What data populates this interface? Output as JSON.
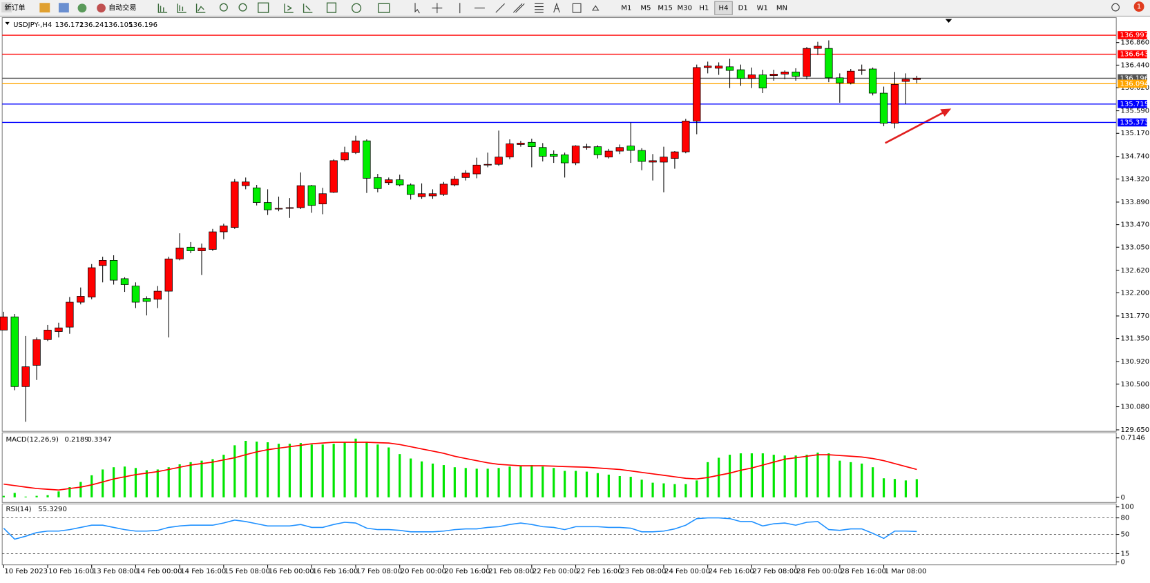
{
  "toolbar": {
    "new_order": "新订单",
    "auto_trading": "自动交易",
    "timeframes": [
      "M1",
      "M5",
      "M15",
      "M30",
      "H1",
      "H4",
      "D1",
      "W1",
      "MN"
    ],
    "notifications": 1
  },
  "chart_data": [
    {
      "type": "candlestick",
      "title": "USDJPY-,H4",
      "categories": [
        "10 Feb 2023",
        null,
        null,
        null,
        "10 Feb 16:00",
        null,
        null,
        null,
        "13 Feb 08:00",
        null,
        null,
        null,
        "14 Feb 00:00",
        null,
        null,
        null,
        "14 Feb 16:00",
        null,
        null,
        null,
        "15 Feb 08:00",
        null,
        null,
        null,
        "16 Feb 00:00",
        null,
        null,
        null,
        "16 Feb 16:00",
        null,
        null,
        null,
        "17 Feb 08:00",
        null,
        null,
        null,
        "20 Feb 00:00",
        null,
        null,
        null,
        "20 Feb 16:00",
        null,
        null,
        null,
        "21 Feb 08:00",
        null,
        null,
        null,
        "22 Feb 00:00",
        null,
        null,
        null,
        "22 Feb 16:00",
        null,
        null,
        null,
        "23 Feb 08:00",
        null,
        null,
        null,
        "24 Feb 00:00",
        null,
        null,
        null,
        "24 Feb 16:00",
        null,
        null,
        null,
        "27 Feb 08:00",
        null,
        null,
        null,
        "28 Feb 00:00",
        null,
        null,
        null,
        "28 Feb 16:00",
        null,
        null,
        null,
        "1 Mar 08:00",
        null,
        null,
        null
      ],
      "open": [
        131.507,
        131.753,
        130.455,
        130.851,
        131.329,
        131.48,
        131.562,
        132.026,
        132.122,
        132.709,
        132.805,
        132.464,
        132.327,
        132.095,
        132.081,
        132.231,
        132.832,
        133.05,
        132.982,
        133.009,
        133.336,
        133.418,
        134.196,
        134.155,
        133.882,
        133.76,
        133.773,
        133.787,
        134.196,
        133.855,
        134.073,
        134.675,
        134.811,
        135.03,
        134.347,
        134.251,
        134.306,
        134.21,
        133.992,
        134.005,
        134.033,
        134.21,
        134.347,
        134.415,
        134.579,
        134.593,
        134.729,
        134.962,
        135.003,
        134.907,
        134.784,
        134.77,
        134.62,
        134.907,
        134.921,
        134.729,
        134.839,
        134.934,
        134.852,
        134.634,
        134.634,
        134.702,
        134.825,
        135.399,
        136.395,
        136.382,
        136.409,
        136.354,
        136.191,
        136.259,
        136.245,
        136.273,
        136.313,
        136.232,
        136.751,
        136.751,
        136.204,
        136.109,
        136.341,
        136.368,
        135.918,
        135.358,
        136.136,
        136.172
      ],
      "high": [
        131.848,
        131.808,
        131.398,
        131.37,
        131.603,
        131.644,
        132.122,
        132.3,
        132.736,
        132.873,
        132.9,
        132.491,
        132.395,
        132.136,
        132.327,
        132.873,
        133.309,
        133.145,
        133.118,
        133.391,
        133.487,
        134.319,
        134.347,
        134.21,
        134.128,
        133.992,
        133.964,
        134.442,
        134.21,
        134.155,
        134.688,
        134.921,
        135.126,
        135.058,
        134.415,
        134.347,
        134.401,
        134.238,
        134.238,
        134.128,
        134.265,
        134.374,
        134.483,
        134.716,
        134.811,
        135.221,
        135.058,
        135.03,
        135.071,
        134.989,
        134.852,
        134.811,
        134.948,
        134.975,
        134.948,
        134.88,
        134.962,
        135.371,
        134.893,
        134.784,
        134.921,
        134.839,
        135.44,
        136.45,
        136.505,
        136.491,
        136.56,
        136.45,
        136.395,
        136.354,
        136.354,
        136.341,
        136.382,
        136.778,
        136.874,
        136.901,
        136.286,
        136.368,
        136.45,
        136.395,
        136.04,
        136.313,
        136.286,
        136.241
      ],
      "low": [
        131.507,
        130.387,
        129.8,
        130.578,
        131.302,
        131.37,
        131.439,
        131.985,
        132.081,
        132.395,
        132.354,
        132.218,
        131.917,
        131.78,
        131.917,
        131.37,
        132.805,
        132.941,
        132.532,
        132.982,
        133.2,
        133.391,
        134.128,
        133.828,
        133.65,
        133.719,
        133.596,
        133.76,
        133.691,
        133.664,
        134.06,
        134.647,
        134.784,
        134.06,
        134.073,
        134.21,
        134.183,
        133.937,
        133.951,
        133.951,
        134.005,
        134.183,
        134.292,
        134.333,
        134.538,
        134.565,
        134.688,
        134.921,
        134.538,
        134.647,
        134.62,
        134.347,
        134.579,
        134.866,
        134.702,
        134.702,
        134.784,
        134.62,
        134.483,
        134.292,
        134.073,
        134.511,
        134.798,
        135.153,
        136.286,
        136.259,
        136.013,
        136.054,
        136.013,
        135.918,
        136.15,
        136.177,
        136.15,
        136.177,
        136.628,
        136.122,
        135.74,
        136.081,
        136.259,
        135.876,
        135.303,
        135.262,
        135.713,
        136.105
      ],
      "close": [
        131.753,
        130.455,
        130.824,
        131.329,
        131.507,
        131.548,
        132.026,
        132.136,
        132.668,
        132.805,
        132.436,
        132.354,
        132.026,
        132.04,
        132.231,
        132.832,
        133.036,
        132.982,
        133.036,
        133.336,
        133.446,
        134.265,
        134.265,
        133.882,
        133.746,
        133.773,
        133.787,
        134.196,
        133.828,
        134.046,
        134.661,
        134.811,
        135.03,
        134.333,
        134.142,
        134.306,
        134.21,
        134.033,
        134.046,
        134.046,
        134.224,
        134.319,
        134.429,
        134.579,
        134.593,
        134.729,
        134.975,
        134.989,
        134.921,
        134.743,
        134.743,
        134.62,
        134.934,
        134.921,
        134.77,
        134.839,
        134.907,
        134.852,
        134.647,
        134.661,
        134.729,
        134.825,
        135.399,
        136.395,
        136.423,
        136.423,
        136.341,
        136.191,
        136.259,
        136.013,
        136.273,
        136.313,
        136.232,
        136.751,
        136.792,
        136.204,
        136.109,
        136.327,
        136.354,
        135.918,
        135.358,
        136.081,
        136.177,
        136.196
      ],
      "up_color": "#ff0000",
      "down_color": "#00ee00",
      "ylim": [
        129.622,
        137.311
      ],
      "yticks": [
        {
          "value": 136.86,
          "label": "136.860"
        },
        {
          "value": 136.44,
          "label": "136.440"
        },
        {
          "value": 136.02,
          "label": "136.020"
        },
        {
          "value": 135.59,
          "label": "135.590"
        },
        {
          "value": 135.17,
          "label": "135.170"
        },
        {
          "value": 134.74,
          "label": "134.740"
        },
        {
          "value": 134.32,
          "label": "134.320"
        },
        {
          "value": 133.89,
          "label": "133.890"
        },
        {
          "value": 133.47,
          "label": "133.470"
        },
        {
          "value": 133.05,
          "label": "133.050"
        },
        {
          "value": 132.62,
          "label": "132.620"
        },
        {
          "value": 132.2,
          "label": "132.200"
        },
        {
          "value": 131.77,
          "label": "131.770"
        },
        {
          "value": 131.35,
          "label": "131.350"
        },
        {
          "value": 130.92,
          "label": "130.920"
        },
        {
          "value": 130.5,
          "label": "130.500"
        },
        {
          "value": 130.08,
          "label": "130.080"
        },
        {
          "value": 129.65,
          "label": "129.650"
        }
      ],
      "hlines": [
        {
          "value": 136.997,
          "color": "#ff0000"
        },
        {
          "value": 136.643,
          "color": "#ff0000"
        },
        {
          "value": 136.196,
          "color": "#555555"
        },
        {
          "value": 136.094,
          "color": "#ffa500"
        },
        {
          "value": 135.715,
          "color": "#0000ff"
        },
        {
          "value": 135.373,
          "color": "#0000ff"
        }
      ]
    },
    {
      "type": "macd",
      "title": "MACD(12,26,9)",
      "histogram": [
        0.018,
        0.053,
        0.009,
        0.018,
        0.026,
        0.071,
        0.123,
        0.185,
        0.265,
        0.335,
        0.362,
        0.37,
        0.353,
        0.326,
        0.335,
        0.362,
        0.397,
        0.423,
        0.441,
        0.459,
        0.512,
        0.626,
        0.679,
        0.67,
        0.662,
        0.644,
        0.644,
        0.653,
        0.635,
        0.635,
        0.644,
        0.662,
        0.706,
        0.67,
        0.635,
        0.6,
        0.52,
        0.467,
        0.432,
        0.406,
        0.388,
        0.362,
        0.353,
        0.344,
        0.344,
        0.353,
        0.37,
        0.379,
        0.388,
        0.37,
        0.353,
        0.318,
        0.318,
        0.309,
        0.291,
        0.273,
        0.256,
        0.247,
        0.212,
        0.176,
        0.168,
        0.159,
        0.159,
        0.203,
        0.423,
        0.476,
        0.512,
        0.529,
        0.529,
        0.529,
        0.512,
        0.503,
        0.503,
        0.512,
        0.538,
        0.529,
        0.441,
        0.423,
        0.406,
        0.362,
        0.229,
        0.221,
        0.203,
        0.2189
      ],
      "signal": [
        0.159,
        0.141,
        0.123,
        0.106,
        0.097,
        0.088,
        0.106,
        0.123,
        0.15,
        0.185,
        0.221,
        0.247,
        0.273,
        0.291,
        0.309,
        0.335,
        0.362,
        0.388,
        0.406,
        0.423,
        0.45,
        0.476,
        0.512,
        0.547,
        0.573,
        0.591,
        0.609,
        0.626,
        0.644,
        0.653,
        0.662,
        0.662,
        0.662,
        0.662,
        0.657,
        0.653,
        0.635,
        0.609,
        0.582,
        0.556,
        0.529,
        0.494,
        0.467,
        0.441,
        0.415,
        0.397,
        0.388,
        0.379,
        0.379,
        0.379,
        0.375,
        0.37,
        0.366,
        0.362,
        0.353,
        0.344,
        0.335,
        0.318,
        0.3,
        0.282,
        0.265,
        0.247,
        0.229,
        0.221,
        0.238,
        0.265,
        0.291,
        0.326,
        0.353,
        0.388,
        0.423,
        0.459,
        0.476,
        0.494,
        0.512,
        0.512,
        0.503,
        0.494,
        0.485,
        0.467,
        0.441,
        0.406,
        0.37,
        0.3347
      ],
      "histogram_color": "#00e600",
      "signal_color": "#ff0000",
      "ylim": [
        -0.062,
        0.776
      ],
      "yticks": [
        0.7146,
        0
      ]
    },
    {
      "type": "rsi",
      "title": "RSI(14)",
      "values": [
        61.3,
        41.3,
        46.7,
        53.3,
        56.0,
        56.0,
        58.7,
        62.7,
        66.7,
        66.7,
        62.7,
        58.7,
        56.0,
        56.0,
        57.3,
        62.7,
        65.3,
        66.7,
        66.7,
        66.7,
        70.7,
        76.0,
        73.3,
        69.3,
        65.3,
        65.3,
        65.3,
        68.0,
        62.7,
        62.7,
        68.0,
        72.0,
        70.7,
        61.3,
        58.7,
        58.7,
        57.3,
        54.7,
        54.7,
        54.7,
        56.0,
        58.7,
        60.0,
        60.0,
        62.7,
        64.0,
        68.0,
        70.7,
        68.0,
        64.0,
        62.7,
        58.7,
        64.0,
        64.0,
        64.0,
        62.7,
        62.7,
        61.3,
        54.7,
        54.7,
        56.0,
        60.0,
        66.7,
        78.7,
        80.0,
        80.0,
        78.7,
        73.3,
        73.3,
        65.3,
        69.3,
        70.7,
        66.7,
        72.0,
        73.3,
        58.7,
        57.3,
        60.0,
        60.0,
        52.0,
        42.7,
        56.0,
        56.0,
        55.329
      ],
      "value_labels": [
        null,
        null,
        null,
        null,
        null,
        null,
        null,
        null,
        null,
        null,
        null,
        null,
        null,
        null,
        null,
        null,
        null,
        null,
        null,
        null,
        null,
        null,
        null,
        null,
        null,
        null,
        null,
        null,
        null,
        null,
        null,
        null,
        null,
        null,
        null,
        null,
        null,
        null,
        null,
        null,
        null,
        null,
        null,
        null,
        null,
        null,
        null,
        null,
        null,
        null,
        null,
        null,
        null,
        null,
        null,
        null,
        null,
        null,
        null,
        null,
        null,
        null,
        null,
        null,
        null,
        null,
        null,
        null,
        null,
        null,
        null,
        null,
        null,
        null,
        null,
        null,
        null,
        null,
        null,
        null,
        null,
        null,
        null,
        "55.3290"
      ],
      "color": "#1e90ff",
      "levels": [
        80,
        50,
        15
      ],
      "ylim": [
        -5.3,
        105.3
      ],
      "yticks": [
        100,
        80,
        50,
        15,
        0
      ]
    }
  ]
}
